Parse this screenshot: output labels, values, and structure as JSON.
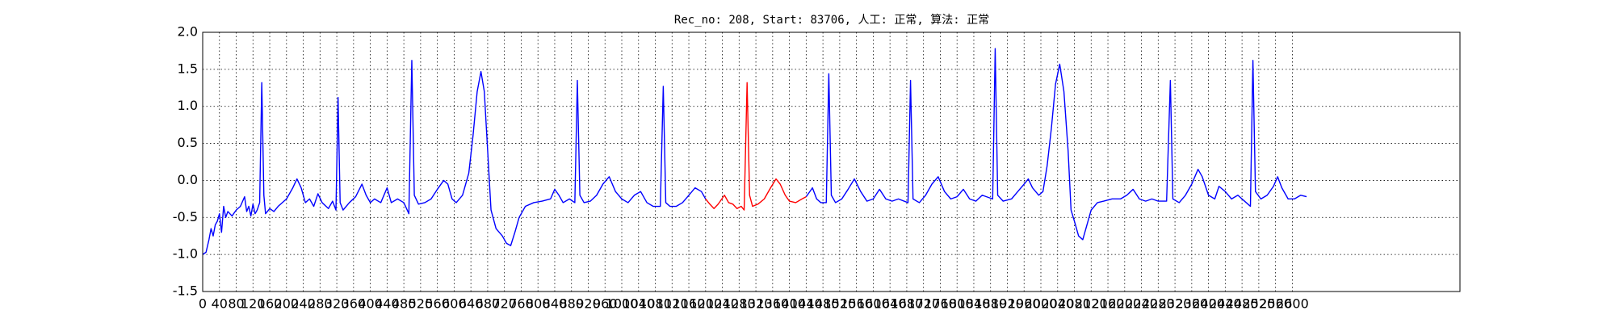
{
  "chart_data": {
    "type": "line",
    "title": "Rec_no: 208, Start: 83706, 人工: 正常, 算法: 正常",
    "xlim": [
      0,
      3000
    ],
    "xticks": [
      0,
      40,
      80,
      120,
      160,
      200,
      240,
      280,
      320,
      360,
      400,
      440,
      480,
      520,
      560,
      600,
      640,
      680,
      720,
      760,
      800,
      840,
      880,
      920,
      960,
      1000,
      1040,
      1080,
      1120,
      1160,
      1200,
      1240,
      1280,
      1320,
      1360,
      1400,
      1440,
      1480,
      1520,
      1560,
      1600,
      1640,
      1680,
      1720,
      1760,
      1800,
      1840,
      1880,
      1920,
      1960,
      2000,
      2040,
      2080,
      2120,
      2160,
      2200,
      2240,
      2280,
      2320,
      2360,
      2400,
      2440,
      2480,
      2520,
      2560,
      2600
    ],
    "ylim": [
      -1.5,
      2.0
    ],
    "yticks": [
      {
        "value": 2,
        "label": "2.0"
      },
      1.5,
      {
        "value": 1,
        "label": "1.0"
      },
      0.5,
      {
        "value": 0,
        "label": "0.0"
      },
      -0.5,
      {
        "value": -1,
        "label": "-1.0"
      },
      -1.5
    ],
    "grid": true,
    "series": [
      {
        "color": "#0000ff",
        "x": [
          0,
          8,
          15,
          20,
          25,
          30,
          35,
          40,
          45,
          50,
          55,
          60,
          70,
          80,
          90,
          100,
          105,
          110,
          115,
          120,
          125,
          130,
          136,
          141,
          146,
          150,
          160,
          170,
          180,
          200,
          215,
          225,
          235,
          245,
          255,
          265,
          275,
          285,
          300,
          310,
          318,
          323,
          328,
          335,
          350,
          365,
          380,
          390,
          400,
          410,
          425,
          440,
          450,
          465,
          480,
          492,
          499,
          505,
          515,
          530,
          545,
          560,
          575,
          585,
          595,
          605,
          620,
          635,
          645,
          655,
          664,
          672,
          680,
          688,
          700,
          715,
          725,
          735,
          745,
          755,
          770,
          790,
          810,
          830,
          840,
          850,
          860,
          875,
          888,
          894,
          900,
          910,
          925,
          940,
          955,
          970,
          985,
          1000,
          1015,
          1030,
          1045,
          1060,
          1075,
          1092,
          1099,
          1105,
          1115,
          1130,
          1145,
          1160,
          1175,
          1190,
          1200,
          1320,
          1440,
          1455,
          1465,
          1475,
          1488,
          1494,
          1500,
          1510,
          1525,
          1540,
          1555,
          1570,
          1585,
          1600,
          1615,
          1630,
          1645,
          1660,
          1683,
          1689,
          1695,
          1710,
          1725,
          1740,
          1755,
          1770,
          1785,
          1800,
          1815,
          1830,
          1845,
          1860,
          1885,
          1891,
          1897,
          1910,
          1930,
          1945,
          1960,
          1970,
          1980,
          1995,
          2005,
          2015,
          2025,
          2035,
          2045,
          2055,
          2065,
          2072,
          2080,
          2090,
          2100,
          2110,
          2120,
          2135,
          2150,
          2170,
          2190,
          2205,
          2220,
          2235,
          2250,
          2265,
          2280,
          2300,
          2309,
          2315,
          2330,
          2345,
          2360,
          2375,
          2385,
          2400,
          2415,
          2425,
          2440,
          2455,
          2470,
          2490,
          2500,
          2506,
          2512,
          2525,
          2540,
          2555,
          2565,
          2575,
          2590,
          2605,
          2620,
          2634
        ],
        "values": [
          -1.0,
          -0.97,
          -0.8,
          -0.65,
          -0.75,
          -0.6,
          -0.55,
          -0.45,
          -0.7,
          -0.35,
          -0.5,
          -0.42,
          -0.48,
          -0.4,
          -0.35,
          -0.22,
          -0.42,
          -0.35,
          -0.48,
          -0.32,
          -0.45,
          -0.4,
          -0.3,
          1.32,
          -0.2,
          -0.45,
          -0.38,
          -0.42,
          -0.35,
          -0.25,
          -0.1,
          0.02,
          -0.1,
          -0.3,
          -0.25,
          -0.35,
          -0.18,
          -0.3,
          -0.38,
          -0.28,
          -0.4,
          1.12,
          -0.3,
          -0.4,
          -0.3,
          -0.22,
          -0.05,
          -0.2,
          -0.3,
          -0.25,
          -0.3,
          -0.1,
          -0.3,
          -0.25,
          -0.3,
          -0.45,
          1.62,
          -0.2,
          -0.32,
          -0.3,
          -0.25,
          -0.12,
          0.0,
          -0.05,
          -0.25,
          -0.3,
          -0.2,
          0.1,
          0.6,
          1.2,
          1.47,
          1.2,
          0.4,
          -0.4,
          -0.65,
          -0.75,
          -0.85,
          -0.88,
          -0.7,
          -0.5,
          -0.35,
          -0.3,
          -0.28,
          -0.25,
          -0.12,
          -0.2,
          -0.3,
          -0.25,
          -0.3,
          1.35,
          -0.2,
          -0.3,
          -0.28,
          -0.2,
          -0.05,
          0.05,
          -0.15,
          -0.25,
          -0.3,
          -0.2,
          -0.15,
          -0.3,
          -0.35,
          -0.35,
          1.27,
          -0.3,
          -0.35,
          -0.35,
          -0.3,
          -0.2,
          -0.1,
          -0.15,
          -0.25,
          null,
          -0.22,
          -0.1,
          -0.25,
          -0.3,
          -0.3,
          1.44,
          -0.2,
          -0.3,
          -0.25,
          -0.12,
          0.02,
          -0.15,
          -0.28,
          -0.25,
          -0.12,
          -0.25,
          -0.28,
          -0.25,
          -0.3,
          1.35,
          -0.25,
          -0.3,
          -0.2,
          -0.05,
          0.05,
          -0.15,
          -0.25,
          -0.22,
          -0.12,
          -0.25,
          -0.28,
          -0.2,
          -0.25,
          1.78,
          -0.2,
          -0.28,
          -0.25,
          -0.15,
          -0.05,
          0.02,
          -0.1,
          -0.2,
          -0.15,
          0.2,
          0.7,
          1.3,
          1.57,
          1.2,
          0.4,
          -0.4,
          -0.55,
          -0.75,
          -0.8,
          -0.6,
          -0.4,
          -0.3,
          -0.28,
          -0.25,
          -0.25,
          -0.2,
          -0.12,
          -0.25,
          -0.28,
          -0.25,
          -0.28,
          -0.28,
          1.35,
          -0.25,
          -0.3,
          -0.2,
          -0.05,
          0.15,
          0.05,
          -0.2,
          -0.25,
          -0.08,
          -0.15,
          -0.25,
          -0.2,
          -0.3,
          -0.35,
          1.62,
          -0.15,
          -0.25,
          -0.2,
          -0.08,
          0.05,
          -0.1,
          -0.25,
          -0.25,
          -0.2,
          -0.22
        ]
      },
      {
        "color": "#ff0000",
        "x": [
          1200,
          1210,
          1220,
          1230,
          1245,
          1255,
          1265,
          1275,
          1285,
          1292,
          1299,
          1305,
          1312,
          1325,
          1340,
          1355,
          1368,
          1378,
          1390,
          1400,
          1415,
          1430,
          1440
        ],
        "values": [
          -0.25,
          -0.32,
          -0.38,
          -0.32,
          -0.2,
          -0.3,
          -0.32,
          -0.38,
          -0.35,
          -0.4,
          1.32,
          -0.2,
          -0.35,
          -0.32,
          -0.25,
          -0.1,
          0.02,
          -0.05,
          -0.2,
          -0.28,
          -0.3,
          -0.25,
          -0.22
        ]
      }
    ]
  }
}
